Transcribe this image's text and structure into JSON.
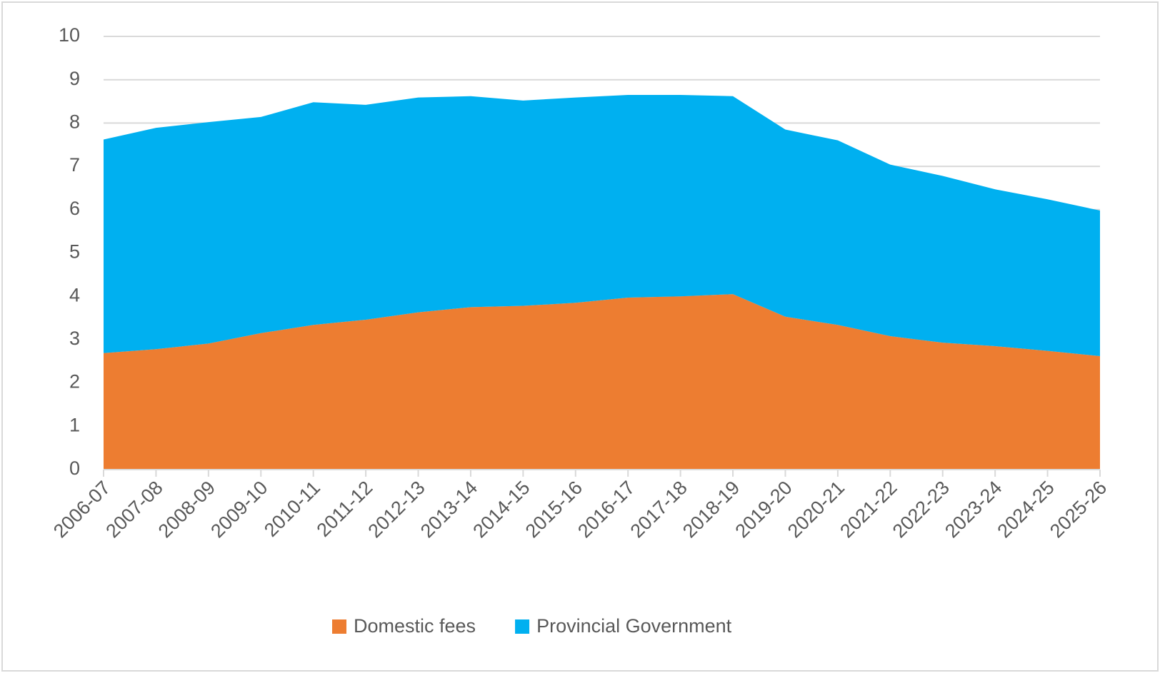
{
  "chart_data": {
    "type": "stacked_area",
    "categories": [
      "2006-07",
      "2007-08",
      "2008-09",
      "2009-10",
      "2010-11",
      "2011-12",
      "2012-13",
      "2013-14",
      "2014-15",
      "2015-16",
      "2016-17",
      "2017-18",
      "2018-19",
      "2019-20",
      "2020-21",
      "2021-22",
      "2022-23",
      "2023-24",
      "2024-25",
      "2025-26"
    ],
    "series": [
      {
        "name": "Domestic fees",
        "color": "#ED7D31",
        "values": [
          2.69,
          2.78,
          2.91,
          3.15,
          3.34,
          3.46,
          3.63,
          3.75,
          3.78,
          3.85,
          3.97,
          4.0,
          4.05,
          3.53,
          3.34,
          3.08,
          2.93,
          2.85,
          2.74,
          2.62
        ]
      },
      {
        "name": "Provincial Government",
        "color": "#00B0F0",
        "values": [
          4.93,
          5.11,
          5.11,
          4.99,
          5.14,
          4.96,
          4.96,
          4.87,
          4.74,
          4.74,
          4.68,
          4.65,
          4.57,
          4.32,
          4.26,
          3.96,
          3.85,
          3.62,
          3.5,
          3.36
        ]
      }
    ],
    "ylim": [
      0,
      10
    ],
    "yticks": [
      0,
      1,
      2,
      3,
      4,
      5,
      6,
      7,
      8,
      9,
      10
    ],
    "grid": true,
    "legend": "bottom"
  }
}
